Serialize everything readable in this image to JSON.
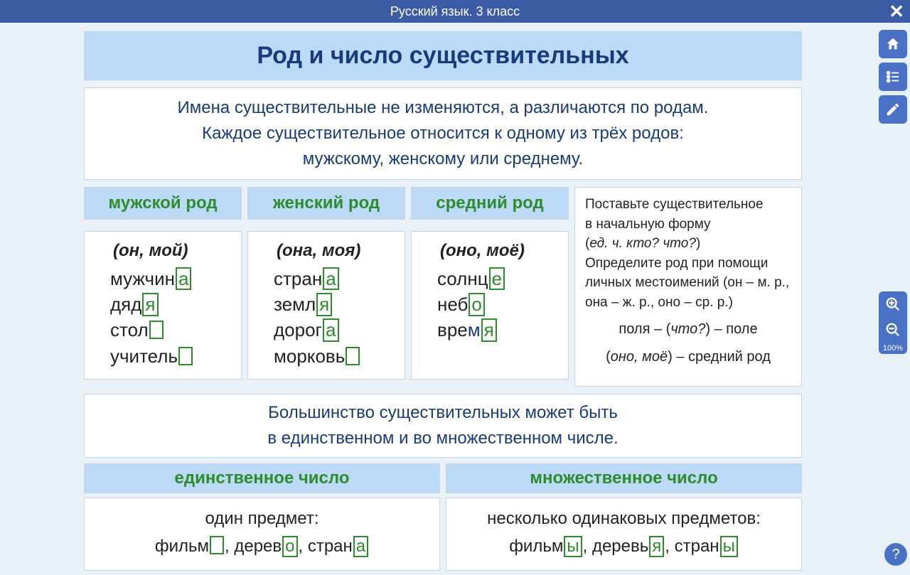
{
  "app": {
    "title": "Русский язык. 3 класс",
    "zoom_label": "100%"
  },
  "colors": {
    "topbar": "#3b5ba5",
    "accent": "#4a72c4",
    "header_bg": "#bcdaf5",
    "border": "#c8d4e4",
    "text_primary": "#1a3a7a",
    "green": "#2e8b2e"
  },
  "lesson": {
    "title": "Род и число существительных",
    "intro_lines": [
      "Имена существительные не изменяются, а различаются по родам.",
      "Каждое существительное относится к одному из трёх родов:",
      "мужскому, женскому или среднему."
    ],
    "genders": [
      {
        "name": "мужской род",
        "pronoun": "(он, мой)",
        "words": [
          [
            {
              "t": "мужчин"
            },
            {
              "b": "а"
            }
          ],
          [
            {
              "t": "дяд"
            },
            {
              "b": "я"
            }
          ],
          [
            {
              "t": "стол"
            },
            {
              "b": ""
            }
          ],
          [
            {
              "t": "учитель"
            },
            {
              "b": ""
            }
          ]
        ]
      },
      {
        "name": "женский род",
        "pronoun": "(она, моя)",
        "words": [
          [
            {
              "t": "стран"
            },
            {
              "b": "а"
            }
          ],
          [
            {
              "t": "земл"
            },
            {
              "b": "я"
            }
          ],
          [
            {
              "t": "дорог"
            },
            {
              "b": "а"
            }
          ],
          [
            {
              "t": "морковь"
            },
            {
              "b": ""
            }
          ]
        ]
      },
      {
        "name": "средний род",
        "pronoun": "(оно, моё)",
        "words": [
          [
            {
              "t": "солнц"
            },
            {
              "b": "е"
            }
          ],
          [
            {
              "t": "неб"
            },
            {
              "b": "о"
            }
          ],
          [
            {
              "t": "вре"
            },
            {
              "blue": "м"
            },
            {
              "b": "я"
            }
          ]
        ]
      }
    ],
    "tip": {
      "lines": [
        "Поставьте существительное",
        "в начальную форму",
        "(<em>ед. ч. кто? что?</em>)",
        "Определите род при помощи личных местоимений (он – м. р., она – ж. р., оно – ср. р.)"
      ],
      "example1": "поля – (<em>что?</em>) – поле",
      "example2": "(<em>оно, моё</em>) –  средний род"
    },
    "mid_lines": [
      "Большинство существительных может быть",
      "в единственном и во множественном числе."
    ],
    "numbers": [
      {
        "name": "единственное число",
        "label": "один предмет:",
        "words": [
          [
            {
              "t": "фильм"
            },
            {
              "b": ""
            }
          ],
          [
            {
              "t": "дерев"
            },
            {
              "b": "о"
            }
          ],
          [
            {
              "t": "стран"
            },
            {
              "b": "а"
            }
          ]
        ]
      },
      {
        "name": "множественное число",
        "label": "несколько одинаковых предметов:",
        "words": [
          [
            {
              "t": "фильм"
            },
            {
              "b": "ы"
            }
          ],
          [
            {
              "t": "деревь"
            },
            {
              "b": "я"
            }
          ],
          [
            {
              "t": "стран"
            },
            {
              "b": "ы"
            }
          ]
        ]
      }
    ]
  }
}
